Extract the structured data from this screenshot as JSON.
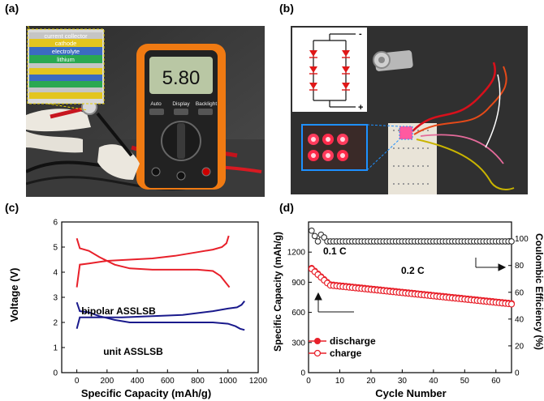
{
  "panels": {
    "a": {
      "label": "(a)",
      "layers": [
        "current collector",
        "cathode",
        "electrolyte",
        "lithium"
      ],
      "meter": {
        "reading": "5.80",
        "buttons": [
          "Auto",
          "Display",
          "Backlight"
        ],
        "colors": {
          "body": "#f07a12",
          "screen": "#b9c7a4",
          "dial": "#1b1b1b"
        }
      }
    },
    "b": {
      "label": "(b)",
      "circuit": {
        "minus": "-",
        "plus": "+",
        "led_color": "#e01818"
      },
      "board_color": "#e9e4d8"
    },
    "c": {
      "label": "(c)",
      "annotations": [
        "bipolar ASSLSB",
        "unit ASSLSB"
      ]
    },
    "d": {
      "label": "(d)",
      "annotations": [
        "0.1 C",
        "0.2 C"
      ],
      "legend": [
        "discharge",
        "charge"
      ]
    }
  },
  "chart_data": [
    {
      "type": "line",
      "panel": "c",
      "xlabel": "Specific Capacity (mAh/g)",
      "ylabel": "Voltage (V)",
      "xlim": [
        -100,
        1200
      ],
      "ylim": [
        0,
        6
      ],
      "xticks": [
        0,
        200,
        400,
        600,
        800,
        1000,
        1200
      ],
      "yticks": [
        0,
        1,
        2,
        3,
        4,
        5,
        6
      ],
      "color_bipolar": "#e8202a",
      "color_unit": "#1a1a8c",
      "series": [
        {
          "group": "bipolar ASSLSB",
          "kind": "discharge",
          "x": [
            0,
            20,
            80,
            150,
            250,
            350,
            500,
            650,
            800,
            900,
            950,
            990,
            1010
          ],
          "y": [
            5.35,
            4.95,
            4.85,
            4.6,
            4.3,
            4.15,
            4.1,
            4.1,
            4.1,
            4.05,
            3.85,
            3.55,
            3.4
          ]
        },
        {
          "group": "bipolar ASSLSB",
          "kind": "charge",
          "x": [
            0,
            20,
            80,
            200,
            350,
            500,
            650,
            800,
            900,
            960,
            990,
            1005
          ],
          "y": [
            3.4,
            4.3,
            4.35,
            4.45,
            4.5,
            4.55,
            4.65,
            4.8,
            4.9,
            5.0,
            5.15,
            5.45
          ]
        },
        {
          "group": "unit ASSLSB",
          "kind": "discharge",
          "x": [
            0,
            20,
            80,
            150,
            250,
            350,
            500,
            700,
            900,
            1000,
            1050,
            1080,
            1110
          ],
          "y": [
            2.8,
            2.45,
            2.4,
            2.25,
            2.1,
            2.0,
            2.0,
            2.0,
            2.0,
            1.95,
            1.85,
            1.75,
            1.7
          ]
        },
        {
          "group": "unit ASSLSB",
          "kind": "charge",
          "x": [
            0,
            20,
            100,
            300,
            500,
            700,
            900,
            1000,
            1060,
            1090,
            1110
          ],
          "y": [
            1.75,
            2.2,
            2.2,
            2.2,
            2.25,
            2.3,
            2.45,
            2.55,
            2.6,
            2.7,
            2.85
          ]
        }
      ]
    },
    {
      "type": "scatter",
      "panel": "d",
      "xlabel": "Cycle Number",
      "ylabel": "Specific Capacity (mAh/g)",
      "ylabel_right": "Coulombic Efficiency (%)",
      "xlim": [
        0,
        65
      ],
      "ylim": [
        0,
        1500
      ],
      "ylim_right": [
        0,
        112.5
      ],
      "xticks": [
        0,
        10,
        20,
        30,
        40,
        50,
        60
      ],
      "yticks": [
        0,
        300,
        600,
        900,
        1200
      ],
      "yticks_right": [
        0,
        20,
        40,
        60,
        80,
        100
      ],
      "color": "#e8202a",
      "ce_color": "#333333",
      "capacity_start": 1040,
      "capacity_end": 690,
      "ce_value": 98
    }
  ]
}
